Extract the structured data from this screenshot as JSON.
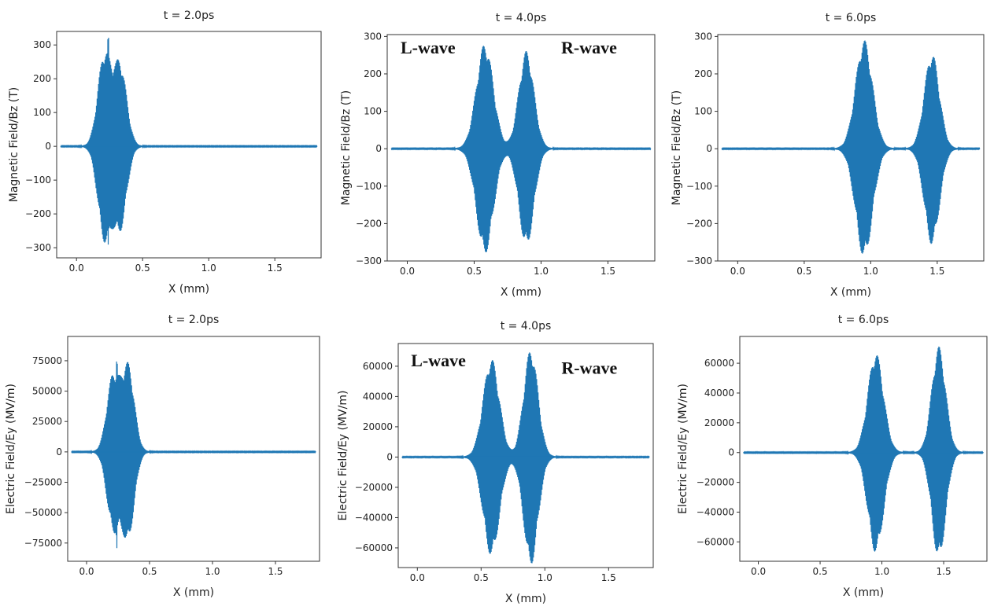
{
  "line_color": "#1f77b4",
  "chart_data": [
    {
      "type": "line",
      "title": "t = 2.0ps",
      "xlabel": "X (mm)",
      "ylabel": "Magnetic Field/Bz (T)",
      "xlim": [
        -0.15,
        1.85
      ],
      "ylim": [
        -330,
        340
      ],
      "xticks": [
        0.0,
        0.5,
        1.0,
        1.5
      ],
      "xtick_labels": [
        "0.0",
        "0.5",
        "1.0",
        "1.5"
      ],
      "yticks": [
        -300,
        -200,
        -100,
        0,
        100,
        200,
        300
      ],
      "ytick_labels": [
        "−300",
        "−200",
        "−100",
        "0",
        "100",
        "200",
        "300"
      ],
      "annotations": [],
      "series": [
        {
          "packets": [
            {
              "center": 0.21,
              "amplitude": 270,
              "half_width": 0.07
            },
            {
              "center": 0.33,
              "amplitude": 240,
              "half_width": 0.07
            }
          ],
          "peak": {
            "x": 0.24,
            "y": 335,
            "y_min": -325
          }
        }
      ]
    },
    {
      "type": "line",
      "title": "t = 4.0ps",
      "xlabel": "X (mm)",
      "ylabel": "Magnetic Field/Bz (T)",
      "xlim": [
        -0.15,
        1.85
      ],
      "ylim": [
        -300,
        305
      ],
      "xticks": [
        0.0,
        0.5,
        1.0,
        1.5
      ],
      "xtick_labels": [
        "0.0",
        "0.5",
        "1.0",
        "1.5"
      ],
      "yticks": [
        -300,
        -200,
        -100,
        0,
        100,
        200,
        300
      ],
      "ytick_labels": [
        "−300",
        "−200",
        "−100",
        "0",
        "100",
        "200",
        "300"
      ],
      "annotations": [
        {
          "text": "L-wave",
          "x": -0.05,
          "y": 255
        },
        {
          "text": "R-wave",
          "x": 1.15,
          "y": 255
        }
      ],
      "series": [
        {
          "packets": [
            {
              "center": 0.58,
              "amplitude": 280,
              "half_width": 0.09
            },
            {
              "center": 0.89,
              "amplitude": 260,
              "half_width": 0.08
            }
          ]
        }
      ]
    },
    {
      "type": "line",
      "title": "t = 6.0ps",
      "xlabel": "X (mm)",
      "ylabel": "Magnetic Field/Bz (T)",
      "xlim": [
        -0.15,
        1.85
      ],
      "ylim": [
        -300,
        305
      ],
      "xticks": [
        0.0,
        0.5,
        1.0,
        1.5
      ],
      "xtick_labels": [
        "0.0",
        "0.5",
        "1.0",
        "1.5"
      ],
      "yticks": [
        -300,
        -200,
        -100,
        0,
        100,
        200,
        300
      ],
      "ytick_labels": [
        "−300",
        "−200",
        "−100",
        "0",
        "100",
        "200",
        "300"
      ],
      "annotations": [],
      "series": [
        {
          "packets": [
            {
              "center": 0.95,
              "amplitude": 290,
              "half_width": 0.09
            },
            {
              "center": 1.46,
              "amplitude": 255,
              "half_width": 0.08
            }
          ]
        }
      ]
    },
    {
      "type": "line",
      "title": "t = 2.0ps",
      "xlabel": "X (mm)",
      "ylabel": "Electric Field/Ey (MV/m)",
      "xlim": [
        -0.15,
        1.85
      ],
      "ylim": [
        -90000,
        95000
      ],
      "xticks": [
        0.0,
        0.5,
        1.0,
        1.5
      ],
      "xtick_labels": [
        "0.0",
        "0.5",
        "1.0",
        "1.5"
      ],
      "yticks": [
        -75000,
        -50000,
        -25000,
        0,
        25000,
        50000,
        75000
      ],
      "ytick_labels": [
        "−75000",
        "−50000",
        "−25000",
        "0",
        "25000",
        "50000",
        "75000"
      ],
      "annotations": [],
      "series": [
        {
          "packets": [
            {
              "center": 0.21,
              "amplitude": 62000,
              "half_width": 0.07
            },
            {
              "center": 0.33,
              "amplitude": 70000,
              "half_width": 0.07
            }
          ],
          "peak": {
            "x": 0.24,
            "y": 82000,
            "y_min": -80000
          }
        }
      ]
    },
    {
      "type": "line",
      "title": "t = 4.0ps",
      "xlabel": "X (mm)",
      "ylabel": "Electric Field/Ey (MV/m)",
      "xlim": [
        -0.15,
        1.85
      ],
      "ylim": [
        -73000,
        75000
      ],
      "xticks": [
        0.0,
        0.5,
        1.0,
        1.5
      ],
      "xtick_labels": [
        "0.0",
        "0.5",
        "1.0",
        "1.5"
      ],
      "yticks": [
        -60000,
        -40000,
        -20000,
        0,
        20000,
        40000,
        60000
      ],
      "ytick_labels": [
        "−60000",
        "−40000",
        "−20000",
        "0",
        "20000",
        "40000",
        "60000"
      ],
      "annotations": [
        {
          "text": "L-wave",
          "x": -0.05,
          "y": 60000
        },
        {
          "text": "R-wave",
          "x": 1.13,
          "y": 55000
        }
      ],
      "series": [
        {
          "packets": [
            {
              "center": 0.58,
              "amplitude": 65000,
              "half_width": 0.09
            },
            {
              "center": 0.89,
              "amplitude": 71000,
              "half_width": 0.08
            }
          ]
        }
      ]
    },
    {
      "type": "line",
      "title": "t = 6.0ps",
      "xlabel": "X (mm)",
      "ylabel": "Electric Field/Ey (MV/m)",
      "xlim": [
        -0.15,
        1.85
      ],
      "ylim": [
        -73000,
        78000
      ],
      "xticks": [
        0.0,
        0.5,
        1.0,
        1.5
      ],
      "xtick_labels": [
        "0.0",
        "0.5",
        "1.0",
        "1.5"
      ],
      "yticks": [
        -60000,
        -40000,
        -20000,
        0,
        20000,
        40000,
        60000
      ],
      "ytick_labels": [
        "−60000",
        "−40000",
        "−20000",
        "0",
        "20000",
        "40000",
        "60000"
      ],
      "annotations": [],
      "series": [
        {
          "packets": [
            {
              "center": 0.95,
              "amplitude": 67000,
              "half_width": 0.09
            },
            {
              "center": 1.46,
              "amplitude": 71000,
              "half_width": 0.08
            }
          ]
        }
      ]
    }
  ]
}
